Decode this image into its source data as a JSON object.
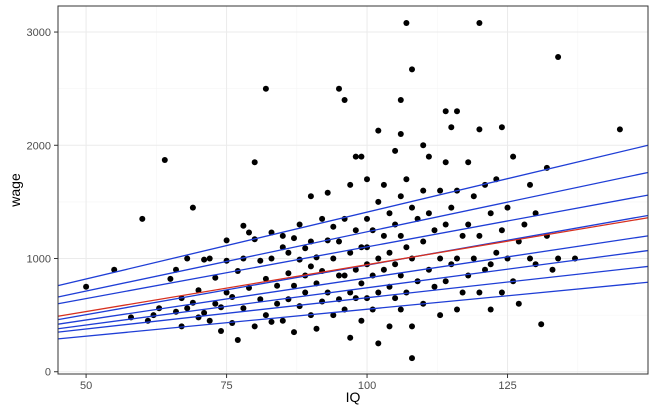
{
  "chart_data": {
    "type": "scatter",
    "title": "",
    "xlabel": "IQ",
    "ylabel": "wage",
    "xlim": [
      45,
      150
    ],
    "ylim": [
      -20,
      3230
    ],
    "xticks": [
      50,
      75,
      100,
      125
    ],
    "yticks": [
      0,
      1000,
      2000,
      3000
    ],
    "x_tick_labels": [
      "50",
      "75",
      "100",
      "125"
    ],
    "y_tick_labels": [
      "0",
      "1000",
      "2000",
      "3000"
    ],
    "grid": true,
    "legend": "none",
    "colors": {
      "points": "#000000",
      "fit_line": "#d7301f",
      "quantile_lines": "#1f3ed6"
    },
    "points": [
      [
        50,
        750
      ],
      [
        55,
        900
      ],
      [
        58,
        480
      ],
      [
        60,
        1350
      ],
      [
        61,
        450
      ],
      [
        62,
        500
      ],
      [
        63,
        560
      ],
      [
        64,
        1870
      ],
      [
        65,
        820
      ],
      [
        66,
        530
      ],
      [
        66,
        900
      ],
      [
        67,
        650
      ],
      [
        67,
        400
      ],
      [
        68,
        1000
      ],
      [
        68,
        560
      ],
      [
        69,
        1450
      ],
      [
        69,
        610
      ],
      [
        70,
        720
      ],
      [
        70,
        480
      ],
      [
        71,
        990
      ],
      [
        71,
        520
      ],
      [
        72,
        1000
      ],
      [
        72,
        450
      ],
      [
        73,
        600
      ],
      [
        73,
        830
      ],
      [
        74,
        360
      ],
      [
        74,
        570
      ],
      [
        75,
        980
      ],
      [
        75,
        700
      ],
      [
        75,
        1160
      ],
      [
        76,
        430
      ],
      [
        76,
        660
      ],
      [
        77,
        280
      ],
      [
        77,
        890
      ],
      [
        78,
        1000
      ],
      [
        78,
        560
      ],
      [
        78,
        1290
      ],
      [
        79,
        1230
      ],
      [
        79,
        740
      ],
      [
        80,
        1850
      ],
      [
        80,
        400
      ],
      [
        80,
        1170
      ],
      [
        81,
        640
      ],
      [
        81,
        980
      ],
      [
        82,
        2500
      ],
      [
        82,
        500
      ],
      [
        82,
        820
      ],
      [
        83,
        1230
      ],
      [
        83,
        440
      ],
      [
        83,
        1000
      ],
      [
        84,
        760
      ],
      [
        84,
        600
      ],
      [
        85,
        1100
      ],
      [
        85,
        1200
      ],
      [
        85,
        450
      ],
      [
        86,
        870
      ],
      [
        86,
        640
      ],
      [
        86,
        1050
      ],
      [
        87,
        760
      ],
      [
        87,
        350
      ],
      [
        87,
        1180
      ],
      [
        88,
        990
      ],
      [
        88,
        580
      ],
      [
        88,
        1300
      ],
      [
        89,
        850
      ],
      [
        89,
        700
      ],
      [
        89,
        1090
      ],
      [
        90,
        1550
      ],
      [
        90,
        930
      ],
      [
        90,
        500
      ],
      [
        90,
        1150
      ],
      [
        91,
        780
      ],
      [
        91,
        1010
      ],
      [
        91,
        380
      ],
      [
        92,
        1350
      ],
      [
        92,
        890
      ],
      [
        92,
        620
      ],
      [
        93,
        1160
      ],
      [
        93,
        700
      ],
      [
        93,
        1580
      ],
      [
        94,
        1000
      ],
      [
        94,
        500
      ],
      [
        94,
        1280
      ],
      [
        95,
        850
      ],
      [
        95,
        640
      ],
      [
        95,
        1150
      ],
      [
        95,
        2500
      ],
      [
        96,
        2400
      ],
      [
        96,
        1350
      ],
      [
        96,
        850
      ],
      [
        96,
        550
      ],
      [
        97,
        1650
      ],
      [
        97,
        1050
      ],
      [
        97,
        700
      ],
      [
        97,
        300
      ],
      [
        98,
        1900
      ],
      [
        98,
        1250
      ],
      [
        98,
        900
      ],
      [
        98,
        650
      ],
      [
        99,
        1900
      ],
      [
        99,
        1100
      ],
      [
        99,
        780
      ],
      [
        99,
        450
      ],
      [
        100,
        1700
      ],
      [
        100,
        1350
      ],
      [
        100,
        950
      ],
      [
        100,
        650
      ],
      [
        100,
        1100
      ],
      [
        101,
        1250
      ],
      [
        101,
        850
      ],
      [
        101,
        550
      ],
      [
        102,
        2130
      ],
      [
        102,
        1500
      ],
      [
        102,
        1000
      ],
      [
        102,
        700
      ],
      [
        102,
        250
      ],
      [
        103,
        1200
      ],
      [
        103,
        900
      ],
      [
        103,
        1650
      ],
      [
        104,
        1400
      ],
      [
        104,
        1050
      ],
      [
        104,
        750
      ],
      [
        104,
        400
      ],
      [
        105,
        1950
      ],
      [
        105,
        1300
      ],
      [
        105,
        950
      ],
      [
        105,
        650
      ],
      [
        106,
        2400
      ],
      [
        106,
        2100
      ],
      [
        106,
        1550
      ],
      [
        106,
        1200
      ],
      [
        106,
        850
      ],
      [
        106,
        550
      ],
      [
        107,
        3080
      ],
      [
        107,
        1700
      ],
      [
        107,
        1100
      ],
      [
        107,
        700
      ],
      [
        108,
        2670
      ],
      [
        108,
        1450
      ],
      [
        108,
        120
      ],
      [
        108,
        1000
      ],
      [
        108,
        400
      ],
      [
        109,
        1350
      ],
      [
        109,
        800
      ],
      [
        110,
        2000
      ],
      [
        110,
        1600
      ],
      [
        110,
        1150
      ],
      [
        110,
        600
      ],
      [
        111,
        1900
      ],
      [
        111,
        1400
      ],
      [
        111,
        900
      ],
      [
        112,
        1250
      ],
      [
        112,
        750
      ],
      [
        113,
        1600
      ],
      [
        113,
        1000
      ],
      [
        113,
        500
      ],
      [
        114,
        2300
      ],
      [
        114,
        1850
      ],
      [
        114,
        1300
      ],
      [
        114,
        800
      ],
      [
        115,
        2160
      ],
      [
        115,
        1450
      ],
      [
        115,
        950
      ],
      [
        116,
        2300
      ],
      [
        116,
        1600
      ],
      [
        116,
        1000
      ],
      [
        116,
        550
      ],
      [
        117,
        1200
      ],
      [
        117,
        700
      ],
      [
        118,
        1850
      ],
      [
        118,
        1300
      ],
      [
        118,
        850
      ],
      [
        119,
        1550
      ],
      [
        119,
        1000
      ],
      [
        120,
        3080
      ],
      [
        120,
        2140
      ],
      [
        120,
        1200
      ],
      [
        120,
        700
      ],
      [
        121,
        1650
      ],
      [
        121,
        900
      ],
      [
        122,
        1400
      ],
      [
        122,
        950
      ],
      [
        122,
        550
      ],
      [
        123,
        1700
      ],
      [
        123,
        1050
      ],
      [
        124,
        2160
      ],
      [
        124,
        1250
      ],
      [
        124,
        700
      ],
      [
        125,
        1000
      ],
      [
        125,
        1450
      ],
      [
        126,
        1900
      ],
      [
        126,
        800
      ],
      [
        127,
        1150
      ],
      [
        127,
        600
      ],
      [
        128,
        1300
      ],
      [
        129,
        1650
      ],
      [
        129,
        1000
      ],
      [
        130,
        950
      ],
      [
        130,
        1400
      ],
      [
        131,
        420
      ],
      [
        132,
        1800
      ],
      [
        132,
        1200
      ],
      [
        133,
        900
      ],
      [
        134,
        2780
      ],
      [
        134,
        1000
      ],
      [
        137,
        1000
      ],
      [
        145,
        2140
      ]
    ],
    "fit_line": {
      "x": [
        45,
        150
      ],
      "y": [
        490,
        1360
      ]
    },
    "quantile_lines": [
      {
        "x": [
          45,
          150
        ],
        "y": [
          760,
          2000
        ]
      },
      {
        "x": [
          45,
          150
        ],
        "y": [
          660,
          1760
        ]
      },
      {
        "x": [
          45,
          150
        ],
        "y": [
          600,
          1560
        ]
      },
      {
        "x": [
          45,
          150
        ],
        "y": [
          460,
          1380
        ]
      },
      {
        "x": [
          45,
          150
        ],
        "y": [
          420,
          1200
        ]
      },
      {
        "x": [
          45,
          150
        ],
        "y": [
          380,
          1070
        ]
      },
      {
        "x": [
          45,
          150
        ],
        "y": [
          350,
          930
        ]
      },
      {
        "x": [
          45,
          150
        ],
        "y": [
          290,
          790
        ]
      }
    ]
  }
}
